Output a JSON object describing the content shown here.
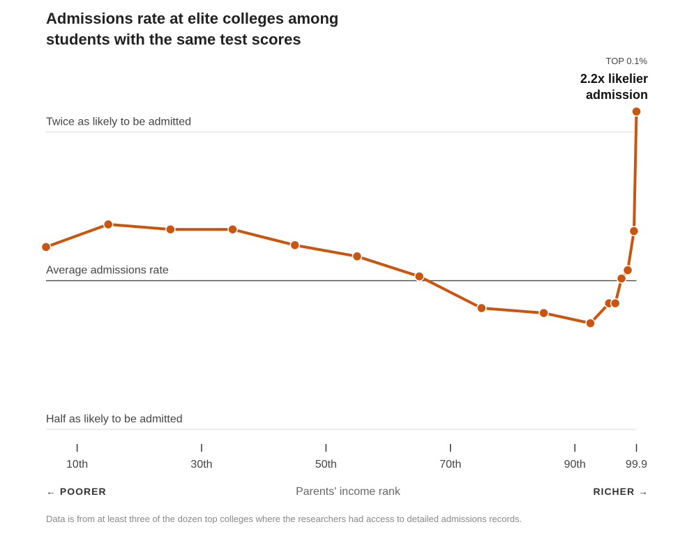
{
  "chart_data": {
    "type": "line",
    "title": "Admissions rate at elite colleges among students with the same test scores",
    "annotation_kicker": "TOP 0.1%",
    "annotation": "2.2x likelier admission",
    "xlabel": "Parents' income rank",
    "xlabel_left": "← POORER",
    "xlabel_right": "RICHER →",
    "note": "Data is from at least three of the dozen top colleges where the researchers had access to detailed admissions records.",
    "x": [
      5,
      15,
      25,
      35,
      45,
      55,
      65,
      75,
      85,
      92.5,
      95.5,
      96.5,
      97.5,
      98.5,
      99.5,
      99.9
    ],
    "values": [
      1.17,
      1.3,
      1.27,
      1.27,
      1.18,
      1.12,
      1.02,
      0.88,
      0.86,
      0.82,
      0.9,
      0.9,
      1.01,
      1.05,
      1.26,
      2.2
    ],
    "color": "#c9550f",
    "xlim": [
      5,
      99.9
    ],
    "xticks": [
      {
        "value": 10,
        "label": "10th"
      },
      {
        "value": 30,
        "label": "30th"
      },
      {
        "value": 50,
        "label": "50th"
      },
      {
        "value": 70,
        "label": "70th"
      },
      {
        "value": 90,
        "label": "90th"
      },
      99.9
    ],
    "ylim": [
      0.5,
      2.2
    ],
    "yscale": "log",
    "yticks": [
      {
        "value": 2,
        "label": "Twice as likely to be admitted"
      },
      {
        "value": 1,
        "label": "Average admissions rate"
      },
      {
        "value": 0.5,
        "label": "Half as likely to be admitted"
      }
    ],
    "grid": true
  }
}
